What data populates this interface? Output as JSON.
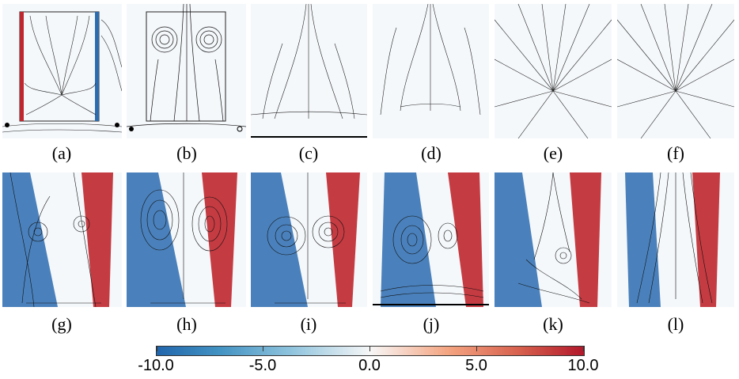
{
  "panels": {
    "top": [
      "(a)",
      "(b)",
      "(c)",
      "(d)",
      "(e)",
      "(f)"
    ],
    "bottom": [
      "(g)",
      "(h)",
      "(i)",
      "(j)",
      "(k)",
      "(l)"
    ]
  },
  "colorbar": {
    "ticks": [
      "-10.0",
      "-5.0",
      "0.0",
      "5.0",
      "10.0"
    ],
    "values": [
      -10.0,
      -5.0,
      0.0,
      5.0,
      10.0
    ],
    "colors": [
      "#2166ac",
      "#4393c3",
      "#92c5de",
      "#f7f7f7",
      "#f4a582",
      "#d6604d",
      "#b2182b"
    ]
  }
}
